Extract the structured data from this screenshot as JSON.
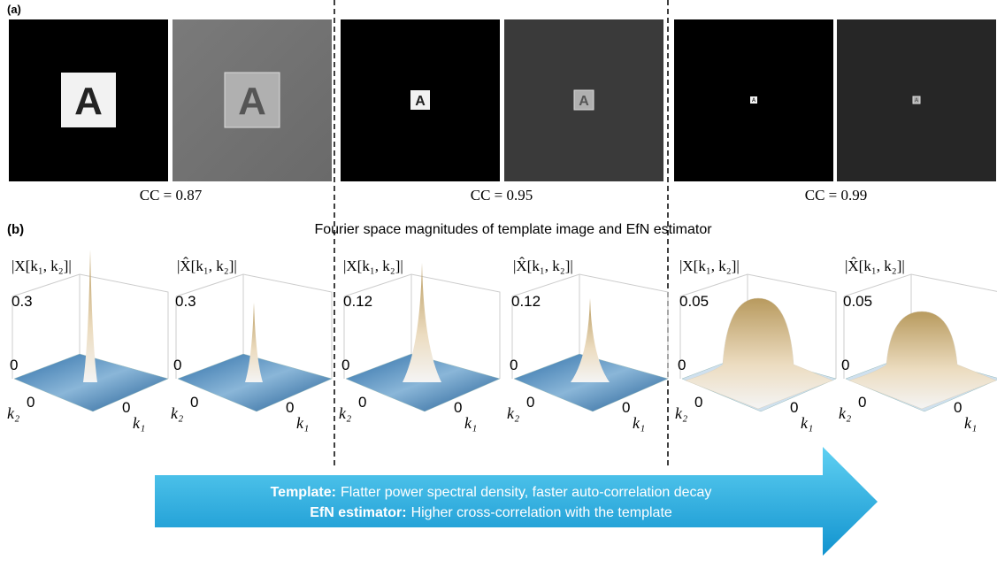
{
  "panel_a": {
    "label": "(a)",
    "image_letter": "A",
    "groups": [
      {
        "cc": "CC = 0.87"
      },
      {
        "cc": "CC = 0.95"
      },
      {
        "cc": "CC = 0.99"
      }
    ]
  },
  "panel_b": {
    "label": "(b)",
    "title": "Fourier space magnitudes of template image and EfN estimator",
    "plots": [
      {
        "z_label": "|X[k₁, k₂]|",
        "z_top": "0.3",
        "z_bottom": "0",
        "k2_label": "k₂",
        "k2_zero": "0",
        "k1_label": "k₁",
        "k1_zero": "0"
      },
      {
        "z_label": "|X̂[k₁, k₂]|",
        "z_top": "0.3",
        "z_bottom": "0",
        "k2_label": "k₂",
        "k2_zero": "0",
        "k1_label": "k₁",
        "k1_zero": "0"
      },
      {
        "z_label": "|X[k₁, k₂]|",
        "z_top": "0.12",
        "z_bottom": "0",
        "k2_label": "k₂",
        "k2_zero": "0",
        "k1_label": "k₁",
        "k1_zero": "0"
      },
      {
        "z_label": "|X̂[k₁, k₂]|",
        "z_top": "0.12",
        "z_bottom": "0",
        "k2_label": "k₂",
        "k2_zero": "0",
        "k1_label": "k₁",
        "k1_zero": "0"
      },
      {
        "z_label": "|X[k₁, k₂]|",
        "z_top": "0.05",
        "z_bottom": "0",
        "k2_label": "k₂",
        "k2_zero": "0",
        "k1_label": "k₁",
        "k1_zero": "0"
      },
      {
        "z_label": "|X̂[k₁, k₂]|",
        "z_top": "0.05",
        "z_bottom": "0",
        "k2_label": "k₂",
        "k2_zero": "0",
        "k1_label": "k₁",
        "k1_zero": "0"
      }
    ]
  },
  "arrow": {
    "lines": [
      {
        "bold": "Template:",
        "text": "Flatter power spectral density, faster auto-correlation decay"
      },
      {
        "bold": "EfN estimator:",
        "text": "Higher cross-correlation with the template"
      }
    ]
  }
}
